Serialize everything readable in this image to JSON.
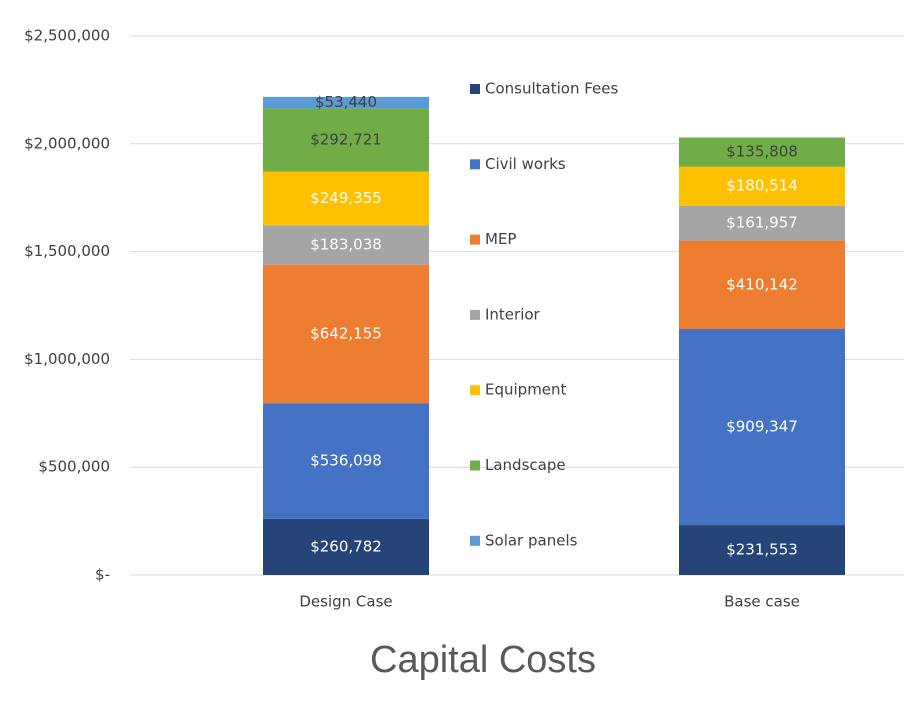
{
  "chart_data": {
    "type": "stacked_bar",
    "title": "Capital Costs",
    "categories": [
      "Design Case",
      "Base case"
    ],
    "series": [
      {
        "name": "Consultation Fees",
        "color": "#264478",
        "values": [
          260782,
          231553
        ],
        "value_labels": [
          "$260,782",
          "$231,553"
        ]
      },
      {
        "name": "Civil works",
        "color": "#4472c4",
        "values": [
          536098,
          909347
        ],
        "value_labels": [
          "$536,098",
          "$909,347"
        ]
      },
      {
        "name": "MEP",
        "color": "#ed7d31",
        "values": [
          642155,
          410142
        ],
        "value_labels": [
          "$642,155",
          "$410,142"
        ]
      },
      {
        "name": "Interior",
        "color": "#a5a5a5",
        "values": [
          183038,
          161957
        ],
        "value_labels": [
          "$183,038",
          "$161,957"
        ]
      },
      {
        "name": "Equipment",
        "color": "#ffc000",
        "values": [
          249355,
          180514
        ],
        "value_labels": [
          "$249,355",
          "$180,514"
        ]
      },
      {
        "name": "Landscape",
        "color": "#70ad47",
        "values": [
          292721,
          135808
        ],
        "value_labels": [
          "$292,721",
          "$135,808"
        ]
      },
      {
        "name": "Solar panels",
        "color": "#5b9bd5",
        "values": [
          53440,
          null
        ],
        "value_labels": [
          "$53,440",
          null
        ]
      }
    ],
    "ylim": [
      0,
      2500000
    ],
    "yticks": [
      {
        "value": 0,
        "label": "$-"
      },
      {
        "value": 500000,
        "label": "$500,000"
      },
      {
        "value": 1000000,
        "label": "$1,000,000"
      },
      {
        "value": 1500000,
        "label": "$1,500,000"
      },
      {
        "value": 2000000,
        "label": "$2,000,000"
      },
      {
        "value": 2500000,
        "label": "$2,500,000"
      }
    ],
    "grid": true
  }
}
